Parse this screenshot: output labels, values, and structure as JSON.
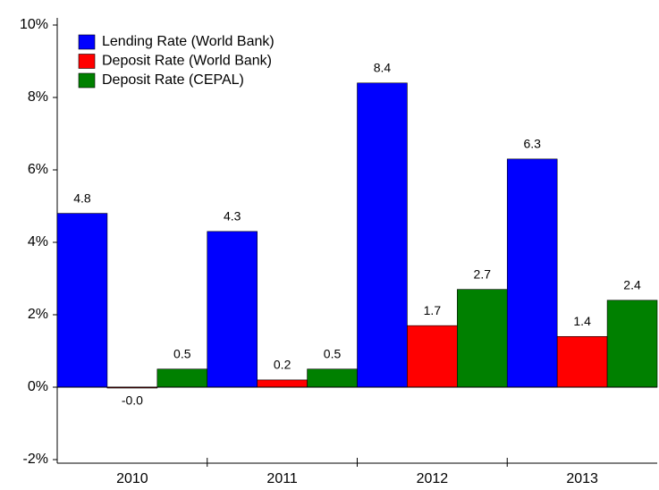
{
  "chart_data": {
    "type": "bar",
    "categories": [
      "2010",
      "2011",
      "2012",
      "2013"
    ],
    "series": [
      {
        "name": "Lending Rate (World Bank)",
        "color": "#0000ff",
        "values": [
          4.8,
          4.3,
          8.4,
          6.3
        ]
      },
      {
        "name": "Deposit Rate (World Bank)",
        "color": "#ff0000",
        "values": [
          -0.02,
          0.2,
          1.7,
          1.4
        ],
        "value_labels": [
          "-0.0",
          "0.2",
          "1.7",
          "1.4"
        ]
      },
      {
        "name": "Deposit Rate (CEPAL)",
        "color": "#008000",
        "values": [
          0.5,
          0.5,
          2.7,
          2.4
        ]
      }
    ],
    "ylim": [
      -2,
      10
    ],
    "yticks": [
      {
        "value": -2,
        "label": "-2%"
      },
      {
        "value": 0,
        "label": "0%"
      },
      {
        "value": 2,
        "label": "2%"
      },
      {
        "value": 4,
        "label": "4%"
      },
      {
        "value": 6,
        "label": "6%"
      },
      {
        "value": 8,
        "label": "8%"
      },
      {
        "value": 10,
        "label": "10%"
      }
    ],
    "legend": "upper left",
    "grid": false
  }
}
